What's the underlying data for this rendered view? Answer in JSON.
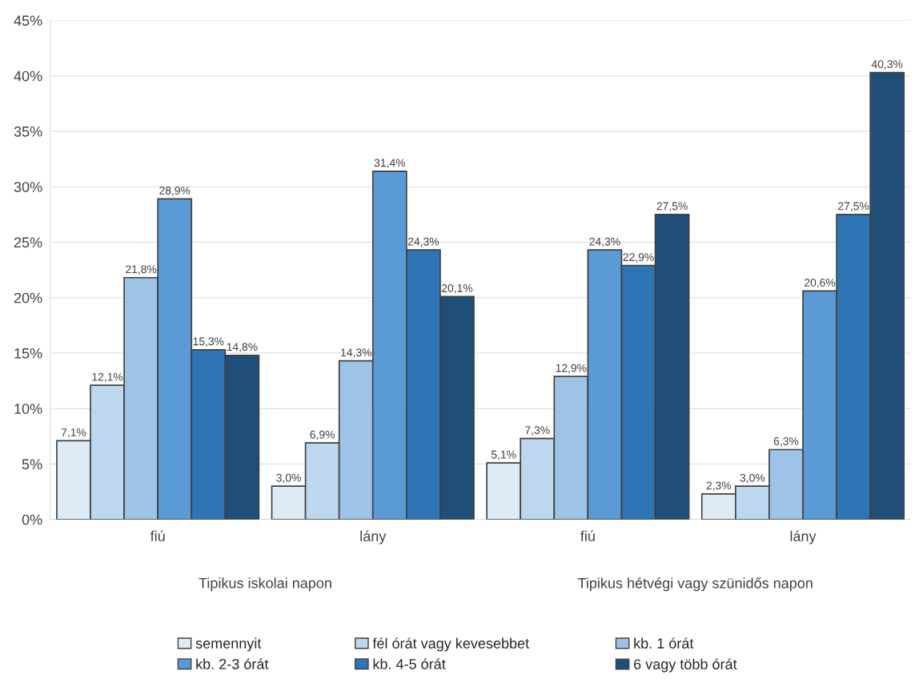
{
  "chart_data": {
    "type": "bar",
    "categories": [
      "fiú",
      "lány",
      "fiú",
      "lány"
    ],
    "series": [
      {
        "name": "semennyit",
        "color": "#deebf7",
        "values": [
          7.1,
          3.0,
          5.1,
          2.3
        ],
        "value_labels": [
          "7,1%",
          "3,0%",
          "5,1%",
          "2,3%"
        ]
      },
      {
        "name": "fél órát vagy kevesebbet",
        "color": "#bdd7ee",
        "values": [
          12.1,
          6.9,
          7.3,
          3.0
        ],
        "value_labels": [
          "12,1%",
          "6,9%",
          "7,3%",
          "3,0%"
        ]
      },
      {
        "name": "kb. 1 órát",
        "color": "#9dc3e6",
        "values": [
          21.8,
          14.3,
          12.9,
          6.3
        ],
        "value_labels": [
          "21,8%",
          "14,3%",
          "12,9%",
          "6,3%"
        ]
      },
      {
        "name": "kb. 2-3 órát",
        "color": "#5b9bd5",
        "values": [
          28.9,
          31.4,
          24.3,
          20.6
        ],
        "value_labels": [
          "28,9%",
          "31,4%",
          "24,3%",
          "20,6%"
        ]
      },
      {
        "name": "kb. 4-5 órát",
        "color": "#2e75b6",
        "values": [
          15.3,
          24.3,
          22.9,
          27.5
        ],
        "value_labels": [
          "15,3%",
          "24,3%",
          "22,9%",
          "27,5%"
        ]
      },
      {
        "name": "6 vagy több órát",
        "color": "#1f4e79",
        "values": [
          14.8,
          20.1,
          27.5,
          40.3
        ],
        "value_labels": [
          "14,8%",
          "20,1%",
          "27,5%",
          "40,3%"
        ]
      }
    ],
    "annotations": [
      "Tipikus iskolai napon",
      "Tipikus hétvégi vagy szünidős napon"
    ],
    "ylim": [
      0,
      45
    ],
    "yticks": [
      {
        "value": 0,
        "label": "0%"
      },
      {
        "value": 5,
        "label": "5%"
      },
      {
        "value": 10,
        "label": "10%"
      },
      {
        "value": 15,
        "label": "15%"
      },
      {
        "value": 20,
        "label": "20%"
      },
      {
        "value": 25,
        "label": "25%"
      },
      {
        "value": 30,
        "label": "30%"
      },
      {
        "value": 35,
        "label": "35%"
      },
      {
        "value": 40,
        "label": "40%"
      },
      {
        "value": 45,
        "label": "45%"
      }
    ],
    "grid": "y",
    "legend": "bottom"
  }
}
